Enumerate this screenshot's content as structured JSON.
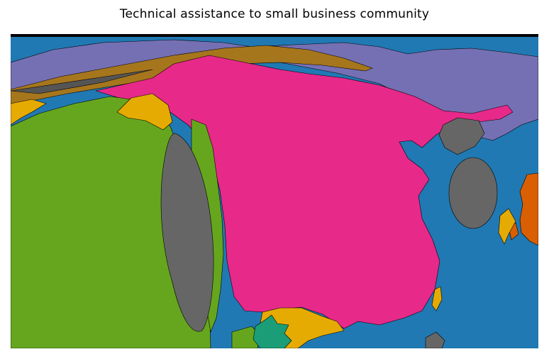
{
  "title": "Technical assistance to small business community",
  "colors": {
    "ocean": "#2079b3",
    "violet": "#7570b3",
    "brown": "#a6761d",
    "magenta": "#e7298a",
    "green": "#66a61e",
    "yellow": "#e6ab02",
    "gray": "#666666",
    "orange": "#d95f02",
    "teal": "#1b9e77"
  }
}
